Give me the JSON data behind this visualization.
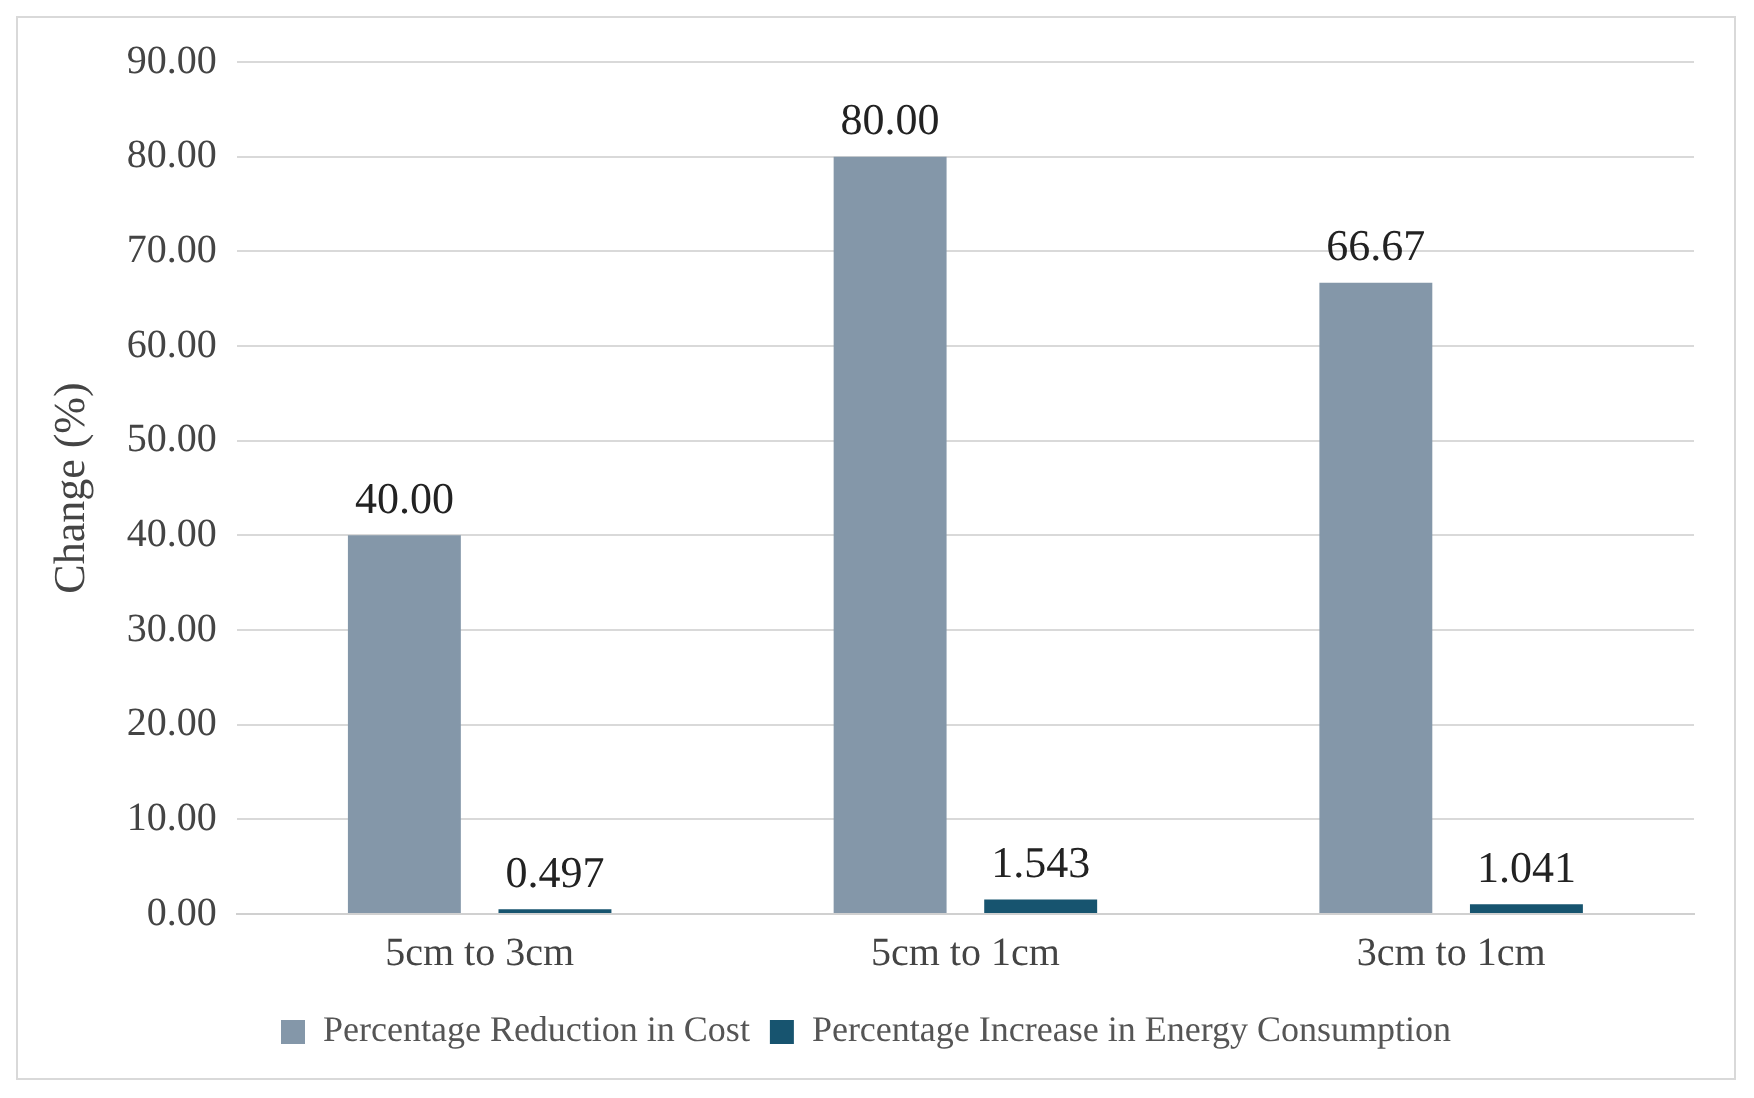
{
  "chart_data": {
    "type": "bar",
    "ylabel": "Change (%)",
    "categories": [
      "5cm to 3cm",
      "5cm to 1cm",
      "3cm to 1cm"
    ],
    "series": [
      {
        "name": "Percentage Reduction in Cost",
        "color": "#8497a9",
        "values": [
          40,
          80,
          66.67
        ],
        "value_labels": [
          "40.00",
          "80.00",
          "66.67"
        ]
      },
      {
        "name": "Percentage Increase in Energy Consumption",
        "color": "#17546f",
        "values": [
          0.497,
          1.543,
          1.041
        ],
        "value_labels": [
          "0.497",
          "1.543",
          "1.041"
        ]
      }
    ],
    "ylim": [
      0,
      90
    ],
    "yticks": [
      {
        "value": 0,
        "label": "0.00"
      },
      {
        "value": 10,
        "label": "10.00"
      },
      {
        "value": 20,
        "label": "20.00"
      },
      {
        "value": 30,
        "label": "30.00"
      },
      {
        "value": 40,
        "label": "40.00"
      },
      {
        "value": 50,
        "label": "50.00"
      },
      {
        "value": 60,
        "label": "60.00"
      },
      {
        "value": 70,
        "label": "70.00"
      },
      {
        "value": 80,
        "label": "80.00"
      },
      {
        "value": 90,
        "label": "90.00"
      }
    ],
    "grid": "y",
    "legend": "bottom"
  }
}
